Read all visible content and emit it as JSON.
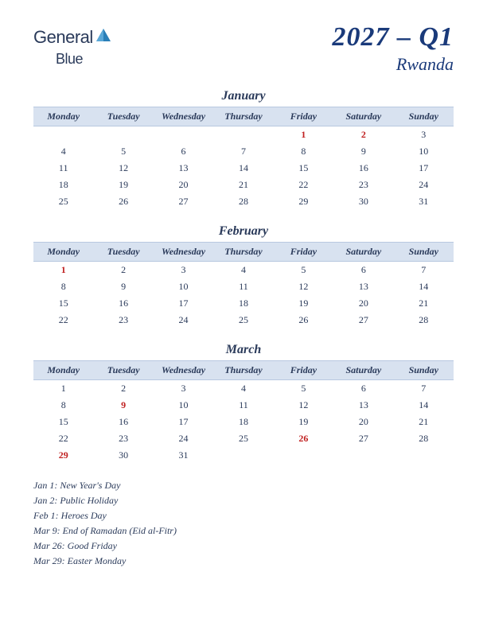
{
  "logo": {
    "text1": "General",
    "text2": "Blue"
  },
  "title": {
    "main": "2027 – Q1",
    "sub": "Rwanda"
  },
  "colors": {
    "header_bg": "#d8e2f0",
    "text": "#2a3a5a",
    "title": "#1a3a7a",
    "holiday": "#c02020",
    "logo_shape": "#2a7fb8"
  },
  "day_headers": [
    "Monday",
    "Tuesday",
    "Wednesday",
    "Thursday",
    "Friday",
    "Saturday",
    "Sunday"
  ],
  "months": [
    {
      "name": "January",
      "weeks": [
        [
          "",
          "",
          "",
          "",
          "1",
          "2",
          "3"
        ],
        [
          "4",
          "5",
          "6",
          "7",
          "8",
          "9",
          "10"
        ],
        [
          "11",
          "12",
          "13",
          "14",
          "15",
          "16",
          "17"
        ],
        [
          "18",
          "19",
          "20",
          "21",
          "22",
          "23",
          "24"
        ],
        [
          "25",
          "26",
          "27",
          "28",
          "29",
          "30",
          "31"
        ]
      ],
      "holidays": [
        [
          0,
          4
        ],
        [
          0,
          5
        ]
      ]
    },
    {
      "name": "February",
      "weeks": [
        [
          "1",
          "2",
          "3",
          "4",
          "5",
          "6",
          "7"
        ],
        [
          "8",
          "9",
          "10",
          "11",
          "12",
          "13",
          "14"
        ],
        [
          "15",
          "16",
          "17",
          "18",
          "19",
          "20",
          "21"
        ],
        [
          "22",
          "23",
          "24",
          "25",
          "26",
          "27",
          "28"
        ]
      ],
      "holidays": [
        [
          0,
          0
        ]
      ]
    },
    {
      "name": "March",
      "weeks": [
        [
          "1",
          "2",
          "3",
          "4",
          "5",
          "6",
          "7"
        ],
        [
          "8",
          "9",
          "10",
          "11",
          "12",
          "13",
          "14"
        ],
        [
          "15",
          "16",
          "17",
          "18",
          "19",
          "20",
          "21"
        ],
        [
          "22",
          "23",
          "24",
          "25",
          "26",
          "27",
          "28"
        ],
        [
          "29",
          "30",
          "31",
          "",
          "",
          "",
          ""
        ]
      ],
      "holidays": [
        [
          1,
          1
        ],
        [
          3,
          4
        ],
        [
          4,
          0
        ]
      ]
    }
  ],
  "holiday_list": [
    "Jan 1: New Year's Day",
    "Jan 2: Public Holiday",
    "Feb 1: Heroes Day",
    "Mar 9: End of Ramadan (Eid al-Fitr)",
    "Mar 26: Good Friday",
    "Mar 29: Easter Monday"
  ]
}
